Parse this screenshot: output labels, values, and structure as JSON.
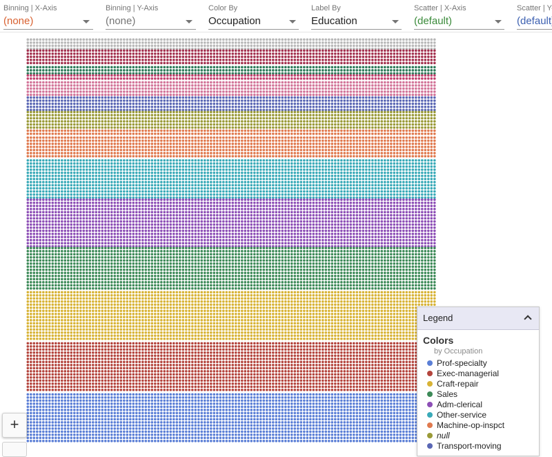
{
  "toolbar": {
    "fields": [
      {
        "label": "Binning | X-Axis",
        "value": "(none)",
        "value_color": "#d8602f"
      },
      {
        "label": "Binning | Y-Axis",
        "value": "(none)",
        "value_color": "#757575"
      },
      {
        "label": "Color By",
        "value": "Occupation",
        "value_color": "#222222"
      },
      {
        "label": "Label By",
        "value": "Education",
        "value_color": "#222222"
      },
      {
        "label": "Scatter | X-Axis",
        "value": "(default)",
        "value_color": "#3a8a3a"
      },
      {
        "label": "Scatter | Y-Axis",
        "value": "(default)",
        "value_color": "#3b5fb0"
      }
    ]
  },
  "zoom": {
    "zoom_in_label": "+"
  },
  "legend": {
    "header": "Legend",
    "section_title": "Colors",
    "section_subtitle": "by Occupation",
    "items": [
      {
        "label": "Prof-specialty",
        "color": "#5b7fd6"
      },
      {
        "label": "Exec-managerial",
        "color": "#b4453d"
      },
      {
        "label": "Craft-repair",
        "color": "#d8b336"
      },
      {
        "label": "Sales",
        "color": "#3d8a58"
      },
      {
        "label": "Adm-clerical",
        "color": "#8d4fb6"
      },
      {
        "label": "Other-service",
        "color": "#3aaab8"
      },
      {
        "label": "Machine-op-inspct",
        "color": "#e07a4f"
      },
      {
        "label": "null",
        "color": "#9a9a38"
      },
      {
        "label": "Transport-moving",
        "color": "#5a67b4"
      }
    ]
  },
  "unit_grid": {
    "bands": [
      {
        "category": "(unnamed)",
        "color": "#b8b8b8"
      },
      {
        "category": "(unnamed)",
        "color": "#a3324f"
      },
      {
        "category": "(unnamed)",
        "color": "#2f7a5a"
      },
      {
        "category": "(unnamed)",
        "color": "#c2416f"
      },
      {
        "category": "(unnamed)",
        "color": "#d3769a"
      },
      {
        "category": "Transport-moving",
        "color": "#5a67b4"
      },
      {
        "category": "null",
        "color": "#9a9a38"
      },
      {
        "category": "Machine-op-inspct",
        "color": "#e07a4f"
      },
      {
        "category": "Other-service",
        "color": "#3aaab8"
      },
      {
        "category": "Adm-clerical",
        "color": "#8d4fb6"
      },
      {
        "category": "Sales",
        "color": "#3d8a58"
      },
      {
        "category": "Craft-repair",
        "color": "#d8b336"
      },
      {
        "category": "Exec-managerial",
        "color": "#b4453d"
      },
      {
        "category": "Prof-specialty",
        "color": "#5b7fd6"
      }
    ]
  }
}
